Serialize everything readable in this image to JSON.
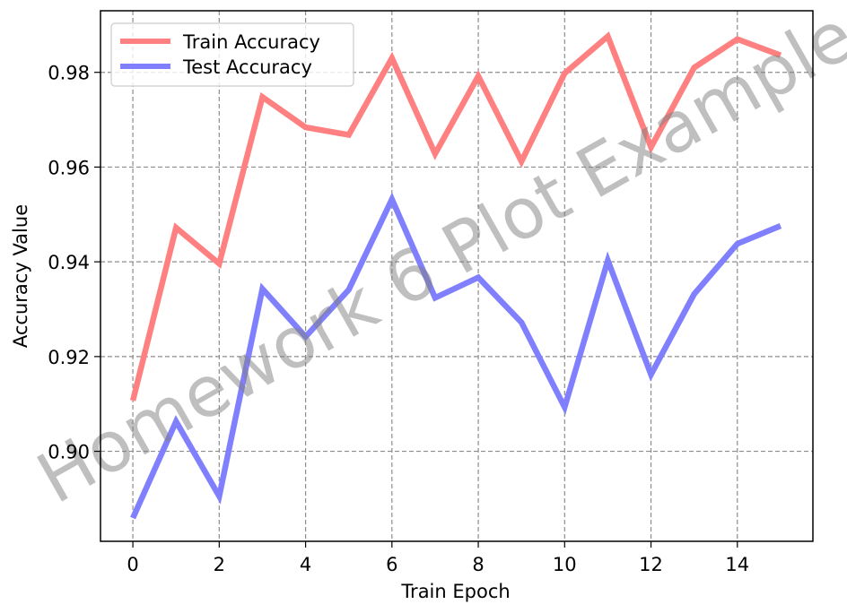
{
  "chart_data": {
    "type": "line",
    "title": "",
    "xlabel": "Train Epoch",
    "ylabel": "Accuracy Value",
    "x": [
      0,
      1,
      2,
      3,
      4,
      5,
      6,
      7,
      8,
      9,
      10,
      11,
      12,
      13,
      14,
      15
    ],
    "xlim": [
      -0.75,
      15.75
    ],
    "ylim": [
      0.881,
      0.993
    ],
    "xticks": [
      0,
      2,
      4,
      6,
      8,
      10,
      12,
      14
    ],
    "yticks": [
      0.9,
      0.92,
      0.94,
      0.96,
      0.98
    ],
    "xtick_labels": [
      "0",
      "2",
      "4",
      "6",
      "8",
      "10",
      "12",
      "14"
    ],
    "ytick_labels": [
      "0.90",
      "0.92",
      "0.94",
      "0.96",
      "0.98"
    ],
    "grid": true,
    "legend_position": "top-left",
    "watermark": "Homework 6 Plot Example",
    "series": [
      {
        "name": "Train Accuracy",
        "color": "#ff8080",
        "values": [
          0.9107,
          0.9472,
          0.9396,
          0.9748,
          0.9684,
          0.9668,
          0.983,
          0.9628,
          0.9792,
          0.9612,
          0.9798,
          0.9876,
          0.9642,
          0.981,
          0.987,
          0.9836
        ]
      },
      {
        "name": "Test Accuracy",
        "color": "#8080ff",
        "values": [
          0.8859,
          0.9063,
          0.8905,
          0.9343,
          0.9242,
          0.9341,
          0.9532,
          0.9324,
          0.9367,
          0.9272,
          0.9093,
          0.9403,
          0.9162,
          0.9332,
          0.9438,
          0.9476
        ]
      }
    ]
  }
}
